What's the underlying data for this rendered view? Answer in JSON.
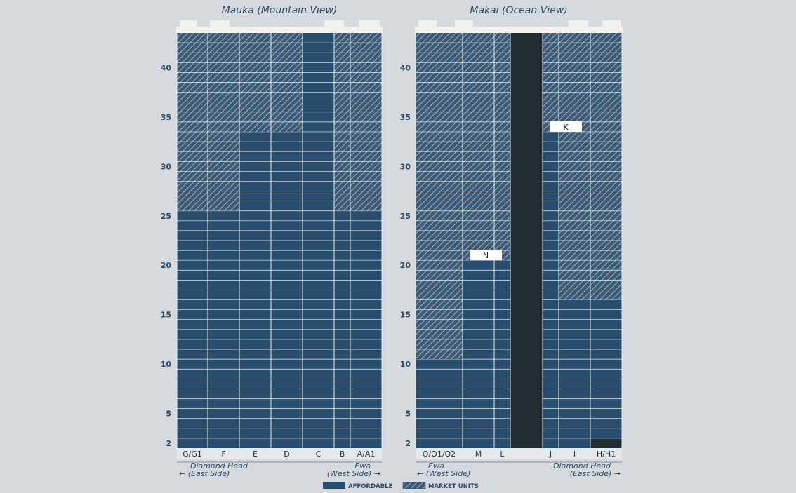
{
  "colors": {
    "affordable": "#294e6d",
    "market_bg": "#3c5a76",
    "market_hatch": "#a2b2c2",
    "dark": "#222c33",
    "grid": "#e6ebef",
    "roof": "#f3f1ee"
  },
  "legend": {
    "affordable": "AFFORDABLE",
    "market": "MARKET UNITS"
  },
  "floor_ticks": [
    "40",
    "35",
    "30",
    "25",
    "20",
    "15",
    "10",
    "5",
    "2"
  ],
  "towers": [
    {
      "title": "Mauka (Mountain View)",
      "dir_left": [
        "Diamond Head",
        "← (East Side)"
      ],
      "dir_right": [
        "Ewa",
        "(West Side) →"
      ],
      "columns": [
        {
          "label": "G/G1",
          "rows": [
            {
              "from": 2,
              "to": 25,
              "type": "affordable"
            },
            {
              "from": 26,
              "to": 43,
              "type": "market"
            }
          ]
        },
        {
          "label": "F",
          "rows": [
            {
              "from": 2,
              "to": 25,
              "type": "affordable"
            },
            {
              "from": 26,
              "to": 43,
              "type": "market"
            }
          ]
        },
        {
          "label": "E",
          "rows": [
            {
              "from": 2,
              "to": 33,
              "type": "affordable"
            },
            {
              "from": 34,
              "to": 43,
              "type": "market"
            }
          ]
        },
        {
          "label": "D",
          "rows": [
            {
              "from": 2,
              "to": 33,
              "type": "affordable"
            },
            {
              "from": 34,
              "to": 43,
              "type": "market"
            }
          ]
        },
        {
          "label": "C",
          "rows": [
            {
              "from": 2,
              "to": 43,
              "type": "affordable"
            }
          ]
        },
        {
          "label": "B",
          "rows": [
            {
              "from": 2,
              "to": 25,
              "type": "affordable"
            },
            {
              "from": 26,
              "to": 43,
              "type": "market"
            }
          ]
        },
        {
          "label": "A/A1",
          "rows": [
            {
              "from": 2,
              "to": 25,
              "type": "affordable"
            },
            {
              "from": 26,
              "to": 43,
              "type": "market"
            }
          ]
        }
      ]
    },
    {
      "title": "Makai (Ocean View)",
      "dir_left": [
        "Ewa",
        "← (West Side)"
      ],
      "dir_right": [
        "Diamond Head",
        "(East Side) →"
      ],
      "columns": [
        {
          "label": "O/O1/O2",
          "rows": [
            {
              "from": 2,
              "to": 10,
              "type": "affordable"
            },
            {
              "from": 11,
              "to": 43,
              "type": "market"
            }
          ]
        },
        {
          "label": "M",
          "rows": [
            {
              "from": 2,
              "to": 20,
              "type": "affordable"
            },
            {
              "from": 21,
              "to": 43,
              "type": "market"
            }
          ]
        },
        {
          "label": "L",
          "rows": [
            {
              "from": 2,
              "to": 20,
              "type": "affordable"
            },
            {
              "from": 21,
              "to": 43,
              "type": "market"
            }
          ]
        },
        {
          "label": "",
          "rows": [
            {
              "from": 2,
              "to": 43,
              "type": "core"
            }
          ]
        },
        {
          "label": "J",
          "rows": [
            {
              "from": 2,
              "to": 33,
              "type": "affordable"
            },
            {
              "from": 34,
              "to": 43,
              "type": "market"
            }
          ]
        },
        {
          "label": "I",
          "rows": [
            {
              "from": 2,
              "to": 16,
              "type": "affordable"
            },
            {
              "from": 17,
              "to": 43,
              "type": "market"
            }
          ]
        },
        {
          "label": "H/H1",
          "rows": [
            {
              "from": 2,
              "to": 2,
              "type": "core"
            },
            {
              "from": 3,
              "to": 16,
              "type": "affordable"
            },
            {
              "from": 17,
              "to": 43,
              "type": "market"
            }
          ]
        }
      ],
      "tags": [
        {
          "text": "N",
          "col": 1,
          "floor": 21
        },
        {
          "text": "K",
          "col": 4,
          "floor": 34
        }
      ]
    }
  ]
}
